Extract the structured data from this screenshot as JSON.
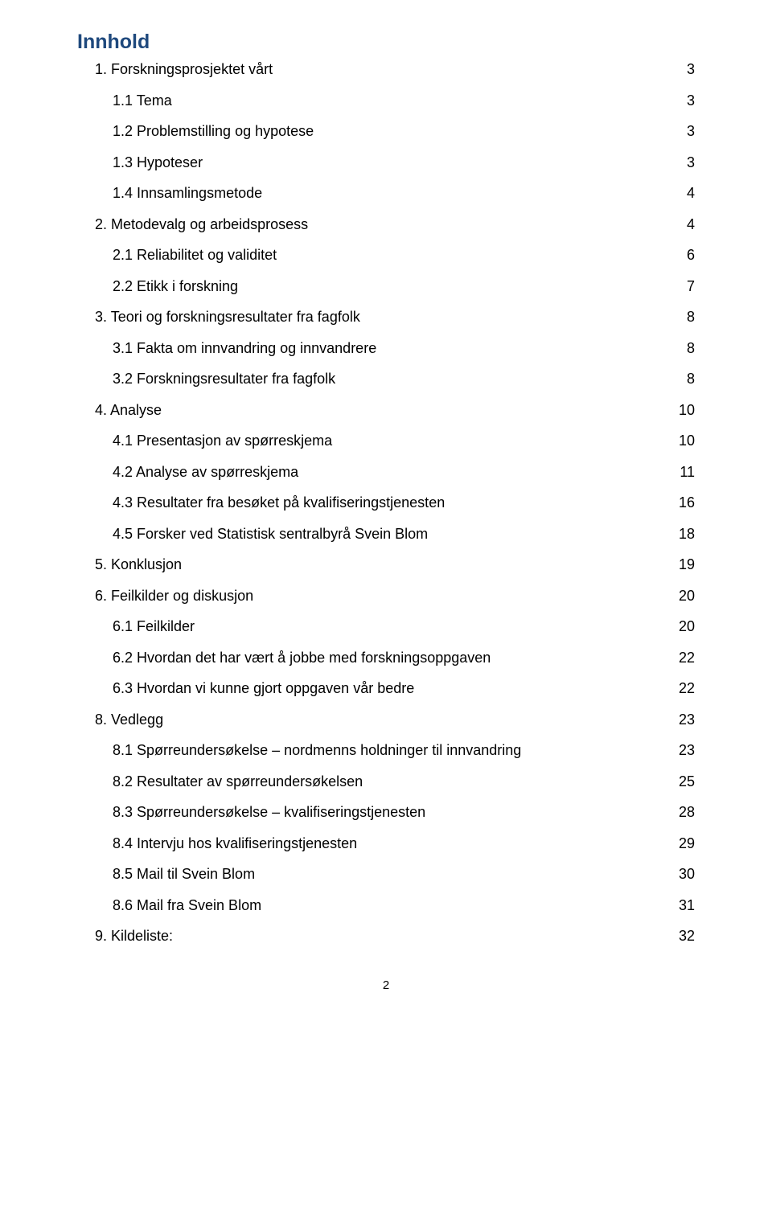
{
  "title": "Innhold",
  "title_color": "#1f497d",
  "title_fontsize": 25,
  "body_fontsize": 18,
  "row_margin_bottom": 20.5,
  "indent_step": 22,
  "page_number": "2",
  "page_number_fontsize": 15,
  "toc": [
    {
      "level": 1,
      "label": "1.   Forskningsprosjektet vårt",
      "page": "3"
    },
    {
      "level": 2,
      "label": "1.1 Tema",
      "page": "3"
    },
    {
      "level": 2,
      "label": "1.2 Problemstilling og hypotese",
      "page": "3"
    },
    {
      "level": 2,
      "label": "1.3 Hypoteser",
      "page": "3"
    },
    {
      "level": 2,
      "label": "1.4 Innsamlingsmetode",
      "page": "4"
    },
    {
      "level": 1,
      "label": "2.   Metodevalg og arbeidsprosess",
      "page": "4"
    },
    {
      "level": 2,
      "label": "2.1 Reliabilitet og validitet",
      "page": "6"
    },
    {
      "level": 2,
      "label": "2.2 Etikk i forskning",
      "page": "7"
    },
    {
      "level": 1,
      "label": "3.   Teori og forskningsresultater fra fagfolk",
      "page": "8"
    },
    {
      "level": 2,
      "label": "3.1 Fakta om innvandring og innvandrere",
      "page": "8"
    },
    {
      "level": 2,
      "label": "3.2 Forskningsresultater fra fagfolk",
      "page": "8"
    },
    {
      "level": 1,
      "label": "4.   Analyse",
      "page": "10"
    },
    {
      "level": 2,
      "label": "4.1 Presentasjon av spørreskjema",
      "page": "10"
    },
    {
      "level": 2,
      "label": "4.2 Analyse av spørreskjema",
      "page": "11"
    },
    {
      "level": 2,
      "label": "4.3 Resultater fra besøket på kvalifiseringstjenesten",
      "page": "16"
    },
    {
      "level": 2,
      "label": "4.5 Forsker ved Statistisk sentralbyrå Svein Blom",
      "page": "18"
    },
    {
      "level": 1,
      "label": "5.   Konklusjon",
      "page": "19"
    },
    {
      "level": 1,
      "label": "6.   Feilkilder og diskusjon",
      "page": "20"
    },
    {
      "level": 2,
      "label": "6.1 Feilkilder",
      "page": "20"
    },
    {
      "level": 2,
      "label": "6.2 Hvordan det har vært å jobbe med forskningsoppgaven",
      "page": "22"
    },
    {
      "level": 2,
      "label": "6.3 Hvordan vi kunne gjort oppgaven vår bedre",
      "page": "22"
    },
    {
      "level": 1,
      "label": "8.   Vedlegg",
      "page": "23"
    },
    {
      "level": 2,
      "label": "8.1 Spørreundersøkelse – nordmenns holdninger til innvandring",
      "page": "23"
    },
    {
      "level": 2,
      "label": "8.2 Resultater av spørreundersøkelsen",
      "page": "25"
    },
    {
      "level": 2,
      "label": "8.3 Spørreundersøkelse – kvalifiseringstjenesten",
      "page": "28"
    },
    {
      "level": 2,
      "label": "8.4 Intervju hos kvalifiseringstjenesten",
      "page": "29"
    },
    {
      "level": 2,
      "label": "8.5 Mail til Svein Blom",
      "page": "30"
    },
    {
      "level": 2,
      "label": "8.6 Mail fra Svein Blom",
      "page": "31"
    },
    {
      "level": 1,
      "label": "9.   Kildeliste:",
      "page": "32"
    }
  ]
}
